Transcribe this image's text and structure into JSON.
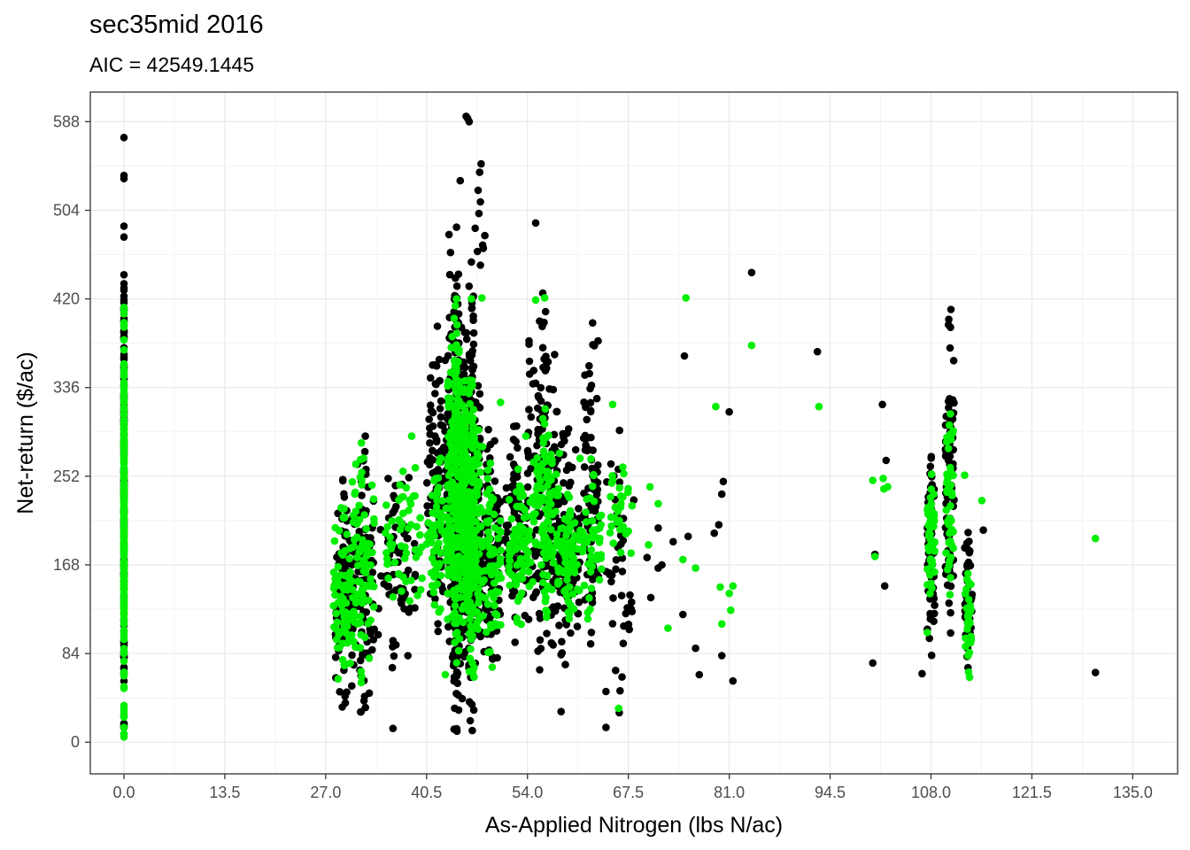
{
  "chart_data": {
    "type": "scatter",
    "title": "sec35mid 2016",
    "subtitle": "AIC = 42549.1445",
    "xlabel": "As-Applied Nitrogen (lbs N/ac)",
    "ylabel": "Net-return ($/ac)",
    "xlim": [
      -4.5,
      141
    ],
    "ylim": [
      -30,
      616
    ],
    "x_ticks": [
      "0.0",
      "13.5",
      "27.0",
      "40.5",
      "54.0",
      "67.5",
      "81.0",
      "94.5",
      "108.0",
      "121.5",
      "135.0"
    ],
    "x_tick_values": [
      0,
      13.5,
      27,
      40.5,
      54,
      67.5,
      81,
      94.5,
      108,
      121.5,
      135
    ],
    "y_ticks": [
      "0",
      "84",
      "168",
      "252",
      "336",
      "420",
      "504",
      "588"
    ],
    "y_tick_values": [
      0,
      84,
      168,
      252,
      336,
      420,
      504,
      588
    ],
    "grid": true,
    "legend": "none",
    "series": [
      {
        "color": "#000000",
        "clusters": [
          {
            "x": 0,
            "xspread": 0,
            "ymin": 5,
            "ymax": 490,
            "n": 120
          },
          {
            "x": 29.5,
            "xspread": 1.2,
            "ymin": 25,
            "ymax": 255,
            "n": 90
          },
          {
            "x": 32,
            "xspread": 1.5,
            "ymin": 20,
            "ymax": 295,
            "n": 70
          },
          {
            "x": 36.5,
            "xspread": 2.5,
            "ymin": 70,
            "ymax": 270,
            "n": 50
          },
          {
            "x": 42,
            "xspread": 1.5,
            "ymin": 100,
            "ymax": 395,
            "n": 80
          },
          {
            "x": 44.5,
            "xspread": 1.2,
            "ymin": 5,
            "ymax": 445,
            "n": 260
          },
          {
            "x": 46.5,
            "xspread": 1.2,
            "ymin": 5,
            "ymax": 445,
            "n": 200
          },
          {
            "x": 49,
            "xspread": 1.5,
            "ymin": 60,
            "ymax": 300,
            "n": 80
          },
          {
            "x": 52.5,
            "xspread": 1.5,
            "ymin": 90,
            "ymax": 300,
            "n": 70
          },
          {
            "x": 56,
            "xspread": 2,
            "ymin": 60,
            "ymax": 430,
            "n": 120
          },
          {
            "x": 59,
            "xspread": 2,
            "ymin": 60,
            "ymax": 300,
            "n": 100
          },
          {
            "x": 62.5,
            "xspread": 1,
            "ymin": 90,
            "ymax": 410,
            "n": 60
          },
          {
            "x": 66.5,
            "xspread": 2,
            "ymin": 15,
            "ymax": 300,
            "n": 30
          },
          {
            "x": 108,
            "xspread": 0.5,
            "ymin": 65,
            "ymax": 300,
            "n": 50
          },
          {
            "x": 110.5,
            "xspread": 0.6,
            "ymin": 100,
            "ymax": 420,
            "n": 60
          },
          {
            "x": 113,
            "xspread": 0.5,
            "ymin": 65,
            "ymax": 225,
            "n": 40
          }
        ],
        "points": [
          [
            45.8,
            593
          ],
          [
            46,
            591
          ],
          [
            46.2,
            588
          ],
          [
            0,
            573
          ],
          [
            0,
            537
          ],
          [
            0,
            534
          ],
          [
            47.8,
            548
          ],
          [
            47.6,
            540
          ],
          [
            47.4,
            523
          ],
          [
            47.7,
            512
          ],
          [
            47.5,
            501
          ],
          [
            45,
            532
          ],
          [
            44.5,
            488
          ],
          [
            47,
            487
          ],
          [
            43.5,
            481
          ],
          [
            47.3,
            465
          ],
          [
            43.7,
            464
          ],
          [
            48.3,
            480
          ],
          [
            48,
            471
          ],
          [
            48.1,
            468
          ],
          [
            46.5,
            455
          ],
          [
            47.7,
            452
          ],
          [
            43.6,
            443
          ],
          [
            55.1,
            492
          ],
          [
            84,
            445
          ],
          [
            92.8,
            370
          ],
          [
            75,
            366
          ],
          [
            81,
            313
          ],
          [
            101.5,
            320
          ],
          [
            102,
            267
          ],
          [
            100.5,
            178
          ],
          [
            100.2,
            75
          ],
          [
            101.8,
            148
          ],
          [
            107.5,
            107
          ],
          [
            106.8,
            65
          ],
          [
            115,
            201
          ],
          [
            130,
            66
          ],
          [
            71.5,
            165
          ],
          [
            71.5,
            203
          ],
          [
            73.5,
            190
          ],
          [
            75.5,
            195
          ],
          [
            76.5,
            89
          ],
          [
            77,
            64
          ],
          [
            79.6,
            206
          ],
          [
            80,
            82
          ],
          [
            81.5,
            58
          ],
          [
            80.2,
            247
          ],
          [
            80,
            235
          ],
          [
            79,
            198
          ],
          [
            70,
            175
          ],
          [
            72,
            168
          ],
          [
            70.5,
            137
          ],
          [
            74.8,
            121
          ],
          [
            64.5,
            48
          ],
          [
            64.5,
            14
          ],
          [
            65.8,
            68
          ],
          [
            58.5,
            29
          ],
          [
            57.2,
            94
          ],
          [
            36,
            13
          ],
          [
            35.5,
            140
          ],
          [
            38,
            82
          ],
          [
            33.5,
            107
          ]
        ]
      },
      {
        "color": "#00ee00",
        "clusters": [
          {
            "x": 0,
            "xspread": 0,
            "ymin": 5,
            "ymax": 412,
            "n": 180
          },
          {
            "x": 29.5,
            "xspread": 1.5,
            "ymin": 40,
            "ymax": 225,
            "n": 70
          },
          {
            "x": 32,
            "xspread": 1.5,
            "ymin": 55,
            "ymax": 285,
            "n": 60
          },
          {
            "x": 37.5,
            "xspread": 2.5,
            "ymin": 110,
            "ymax": 275,
            "n": 40
          },
          {
            "x": 42,
            "xspread": 1.5,
            "ymin": 120,
            "ymax": 270,
            "n": 50
          },
          {
            "x": 44.5,
            "xspread": 1.2,
            "ymin": 60,
            "ymax": 420,
            "n": 220
          },
          {
            "x": 46.5,
            "xspread": 1.2,
            "ymin": 60,
            "ymax": 360,
            "n": 200
          },
          {
            "x": 49,
            "xspread": 1.5,
            "ymin": 70,
            "ymax": 270,
            "n": 60
          },
          {
            "x": 53,
            "xspread": 1.5,
            "ymin": 110,
            "ymax": 265,
            "n": 60
          },
          {
            "x": 56.5,
            "xspread": 1.8,
            "ymin": 110,
            "ymax": 330,
            "n": 80
          },
          {
            "x": 59.5,
            "xspread": 1.5,
            "ymin": 110,
            "ymax": 250,
            "n": 60
          },
          {
            "x": 62.5,
            "xspread": 1.5,
            "ymin": 110,
            "ymax": 280,
            "n": 40
          },
          {
            "x": 66.5,
            "xspread": 1.5,
            "ymin": 150,
            "ymax": 280,
            "n": 20
          },
          {
            "x": 108,
            "xspread": 0.5,
            "ymin": 140,
            "ymax": 255,
            "n": 40
          },
          {
            "x": 110.5,
            "xspread": 0.5,
            "ymin": 130,
            "ymax": 330,
            "n": 40
          },
          {
            "x": 113,
            "xspread": 0.4,
            "ymin": 58,
            "ymax": 175,
            "n": 25
          }
        ],
        "points": [
          [
            0,
            5
          ],
          [
            0,
            8
          ],
          [
            0,
            412
          ],
          [
            44.5,
            420
          ],
          [
            46.5,
            420
          ],
          [
            47.9,
            421
          ],
          [
            55.1,
            419
          ],
          [
            56.3,
            421
          ],
          [
            75.2,
            421
          ],
          [
            84,
            376
          ],
          [
            93,
            318
          ],
          [
            74.8,
            173
          ],
          [
            76.5,
            165
          ],
          [
            79.2,
            318
          ],
          [
            79.8,
            147
          ],
          [
            81.5,
            148
          ],
          [
            81,
            141
          ],
          [
            81.2,
            125
          ],
          [
            80,
            112
          ],
          [
            72.8,
            108
          ],
          [
            70.2,
            187
          ],
          [
            71.5,
            226
          ],
          [
            68,
            224
          ],
          [
            67.5,
            200
          ],
          [
            70.4,
            242
          ],
          [
            66.2,
            32
          ],
          [
            65.4,
            320
          ],
          [
            100.5,
            176
          ],
          [
            100.2,
            248
          ],
          [
            101.6,
            250
          ],
          [
            101.7,
            240
          ],
          [
            102.2,
            242
          ],
          [
            107.5,
            104
          ],
          [
            112.5,
            253
          ],
          [
            114.8,
            229
          ],
          [
            130,
            193
          ],
          [
            50.4,
            322
          ],
          [
            43,
            64
          ],
          [
            39,
            260
          ],
          [
            38.5,
            290
          ],
          [
            48,
            280
          ],
          [
            53.8,
            290
          ]
        ]
      }
    ]
  }
}
